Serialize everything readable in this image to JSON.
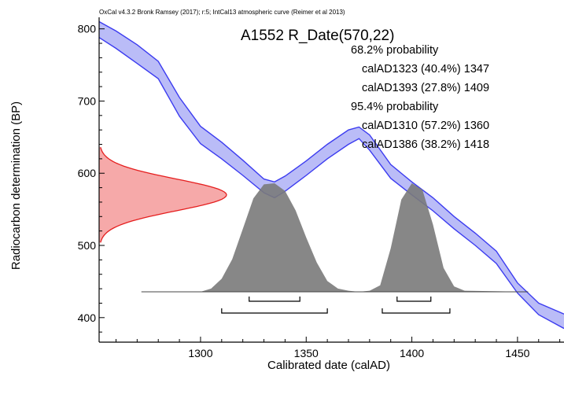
{
  "chart_data": {
    "type": "area",
    "credit": "OxCal v4.3.2 Bronk Ramsey (2017); r:5; IntCal13 atmospheric curve (Reimer et al 2013)",
    "title": "A1552 R_Date(570,22)",
    "xlabel": "Calibrated date (calAD)",
    "ylabel": "Radiocarbon determination (BP)",
    "xlim": [
      1252,
      1472
    ],
    "ylim": [
      366,
      816
    ],
    "x_ticks": [
      1300,
      1350,
      1400,
      1450
    ],
    "y_ticks": [
      400,
      500,
      600,
      700,
      800
    ],
    "grid": false,
    "results": [
      {
        "label": "68.2% probability",
        "heading": true
      },
      {
        "label": "calAD1323 (40.4%) 1347",
        "heading": false
      },
      {
        "label": "calAD1393 (27.8%) 1409",
        "heading": false
      },
      {
        "label": "95.4% probability",
        "heading": true
      },
      {
        "label": "calAD1310 (57.2%) 1360",
        "heading": false
      },
      {
        "label": "calAD1386 (38.2%) 1418",
        "heading": false
      }
    ],
    "ranges_68": [
      [
        1323,
        1347
      ],
      [
        1393,
        1409
      ]
    ],
    "ranges_95": [
      [
        1310,
        1360
      ],
      [
        1386,
        1418
      ]
    ],
    "radiocarbon_date": {
      "mean": 570,
      "sigma": 22
    },
    "calibration_curve": {
      "name": "IntCal13",
      "color": "#3c3cf0",
      "fill": "#aeb0f6",
      "x": [
        1252,
        1260,
        1270,
        1280,
        1290,
        1300,
        1310,
        1320,
        1330,
        1335,
        1340,
        1350,
        1360,
        1370,
        1375,
        1380,
        1390,
        1400,
        1410,
        1420,
        1430,
        1440,
        1450,
        1460,
        1472
      ],
      "upper": [
        810,
        797,
        778,
        755,
        705,
        665,
        643,
        618,
        592,
        588,
        596,
        617,
        640,
        660,
        664,
        653,
        612,
        588,
        566,
        540,
        517,
        492,
        448,
        420,
        405
      ],
      "lower": [
        788,
        773,
        752,
        731,
        679,
        641,
        620,
        597,
        573,
        566,
        575,
        597,
        620,
        640,
        648,
        632,
        593,
        570,
        548,
        523,
        500,
        475,
        434,
        404,
        385
      ]
    },
    "calibrated_distribution": {
      "color": "#7a7a7a",
      "x": [
        1272,
        1300,
        1305,
        1310,
        1315,
        1320,
        1325,
        1330,
        1335,
        1340,
        1345,
        1350,
        1355,
        1360,
        1365,
        1370,
        1375,
        1380,
        1385,
        1390,
        1395,
        1400,
        1405,
        1410,
        1415,
        1420,
        1425,
        1455
      ],
      "rel": [
        0,
        0,
        0.03,
        0.12,
        0.3,
        0.58,
        0.86,
        0.99,
        1.0,
        0.93,
        0.75,
        0.5,
        0.27,
        0.1,
        0.03,
        0.01,
        0,
        0.01,
        0.06,
        0.4,
        0.85,
        1.0,
        0.94,
        0.62,
        0.22,
        0.05,
        0.01,
        0
      ]
    },
    "radiocarbon_distribution": {
      "color": "#e51e1e",
      "fill": "#f5a0a0"
    }
  }
}
